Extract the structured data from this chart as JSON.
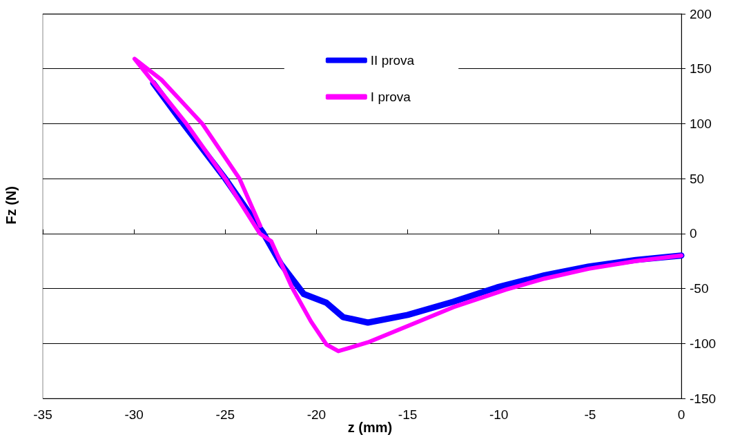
{
  "chart_data": {
    "type": "line",
    "xlabel": "z (mm)",
    "ylabel": "Fz (N)",
    "xlim": [
      -35,
      0
    ],
    "xticks": [
      -35,
      -30,
      -25,
      -20,
      -15,
      -10,
      -5,
      0
    ],
    "ylim": [
      -150,
      200
    ],
    "yticks": [
      -150,
      -100,
      -50,
      0,
      50,
      100,
      150,
      200
    ],
    "grid": "y",
    "legend": "top",
    "marker": "none",
    "line_style": "solid",
    "series": [
      {
        "name": "II prova",
        "color": "#0000ff",
        "x": [
          -28.95,
          -27.3,
          -25.0,
          -22.9,
          -21.95,
          -20.7,
          -19.45,
          -18.54,
          -17.18,
          -15.0,
          -12.5,
          -10.1,
          -7.5,
          -5.07,
          -2.5,
          0
        ],
        "values": [
          137,
          100,
          50,
          0,
          -27.6,
          -55,
          -63,
          -76,
          -81,
          -74,
          -62,
          -49,
          -38,
          -30,
          -24,
          -20
        ]
      },
      {
        "name": "I prova",
        "color": "#ff00ff",
        "x": [
          0,
          -2.5,
          -5.07,
          -7.5,
          -9.61,
          -12.5,
          -14.4,
          -17.18,
          -18.8,
          -19.45,
          -20.3,
          -21.34,
          -22.48,
          -23.1,
          -25.0,
          -27.13,
          -29.97,
          -28.5,
          -26.26,
          -24.22,
          -23.08
        ],
        "values": [
          -20,
          -25,
          -32,
          -41,
          -51,
          -67,
          -80,
          -99,
          -107,
          -101,
          -80,
          -49,
          -7,
          0,
          50,
          100,
          159,
          140,
          100,
          50,
          7
        ]
      }
    ]
  }
}
